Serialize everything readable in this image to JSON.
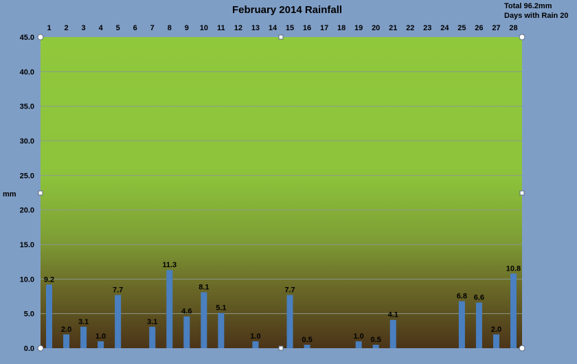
{
  "chart_data": {
    "type": "bar",
    "title": "February 2014 Rainfall",
    "summary": {
      "total_text": "Total 96.2mm",
      "days_text": "Days with Rain  20"
    },
    "ylabel": "mm",
    "xlabel": "",
    "ylim": [
      0,
      45
    ],
    "yticks": [
      "0.0",
      "5.0",
      "10.0",
      "15.0",
      "20.0",
      "25.0",
      "30.0",
      "35.0",
      "40.0",
      "45.0"
    ],
    "categories": [
      "1",
      "2",
      "3",
      "4",
      "5",
      "6",
      "7",
      "8",
      "9",
      "10",
      "11",
      "12",
      "13",
      "14",
      "15",
      "16",
      "17",
      "18",
      "19",
      "20",
      "21",
      "22",
      "23",
      "24",
      "25",
      "26",
      "27",
      "28"
    ],
    "values": [
      9.2,
      2.0,
      3.1,
      1.0,
      7.7,
      0,
      3.1,
      11.3,
      4.6,
      8.1,
      5.1,
      0,
      1.0,
      0,
      7.7,
      0.5,
      0,
      0,
      1.0,
      0.5,
      4.1,
      0,
      0,
      0,
      6.8,
      6.6,
      2.0,
      10.8
    ],
    "data_labels": [
      "9.2",
      "2.0",
      "3.1",
      "1.0",
      "7.7",
      "",
      "3.1",
      "11.3",
      "4.6",
      "8.1",
      "5.1",
      "",
      "1.0",
      "",
      "7.7",
      "0.5",
      "",
      "",
      "1.0",
      "0.5",
      "4.1",
      "",
      "",
      "",
      "6.8",
      "6.6",
      "2.0",
      "10.8"
    ],
    "x_axis_position": "top",
    "grid": true,
    "legend": "none",
    "colors": {
      "bar": "#4a7fc0",
      "background": "#7f9ec6",
      "plot_top": "#90c83c",
      "plot_mid": "#86b13a",
      "plot_bottom": "#4b3418"
    }
  }
}
